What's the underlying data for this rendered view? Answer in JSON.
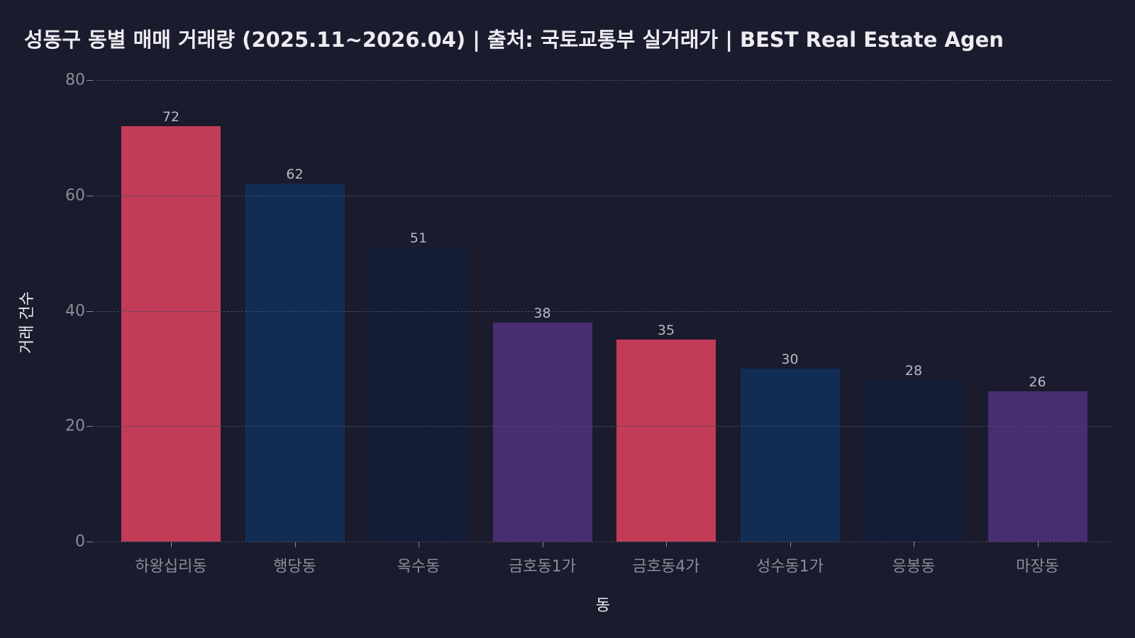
{
  "title": "성동구 동별 매매 거래량 (2025.11~2026.04) | 출처: 국토교통부 실거래가 | BEST Real Estate Agen",
  "xlabel": "동",
  "ylabel": "거래 건수",
  "yticks": [
    "0",
    "20",
    "40",
    "60",
    "80"
  ],
  "colors": {
    "background": "#1b1b2e",
    "crimson": "#c23c57",
    "navy": "#122d54",
    "dark_navy": "#141d37",
    "purple": "#482e71"
  },
  "chart_data": {
    "type": "bar",
    "title": "성동구 동별 매매 거래량 (2025.11~2026.04) | 출처: 국토교통부 실거래가 | BEST Real Estate Agen",
    "xlabel": "동",
    "ylabel": "거래 건수",
    "categories": [
      "하왕십리동",
      "행당동",
      "옥수동",
      "금호동1가",
      "금호동4가",
      "성수동1가",
      "응봉동",
      "마장동"
    ],
    "values": [
      72,
      62,
      51,
      38,
      35,
      30,
      28,
      26
    ],
    "bar_colors": [
      "#c23c57",
      "#122d54",
      "#141d37",
      "#482e71",
      "#c23c57",
      "#122d54",
      "#141d37",
      "#482e71"
    ],
    "data_labels": [
      "72",
      "62",
      "51",
      "38",
      "35",
      "30",
      "28",
      "26"
    ],
    "ylim": [
      0,
      80
    ],
    "yticks": [
      0,
      20,
      40,
      60,
      80
    ],
    "grid": "y-axis dashed",
    "legend": "none"
  },
  "bars": [
    {
      "label": "하왕십리동",
      "value": "72"
    },
    {
      "label": "행당동",
      "value": "62"
    },
    {
      "label": "옥수동",
      "value": "51"
    },
    {
      "label": "금호동1가",
      "value": "38"
    },
    {
      "label": "금호동4가",
      "value": "35"
    },
    {
      "label": "성수동1가",
      "value": "30"
    },
    {
      "label": "응봉동",
      "value": "28"
    },
    {
      "label": "마장동",
      "value": "26"
    }
  ]
}
